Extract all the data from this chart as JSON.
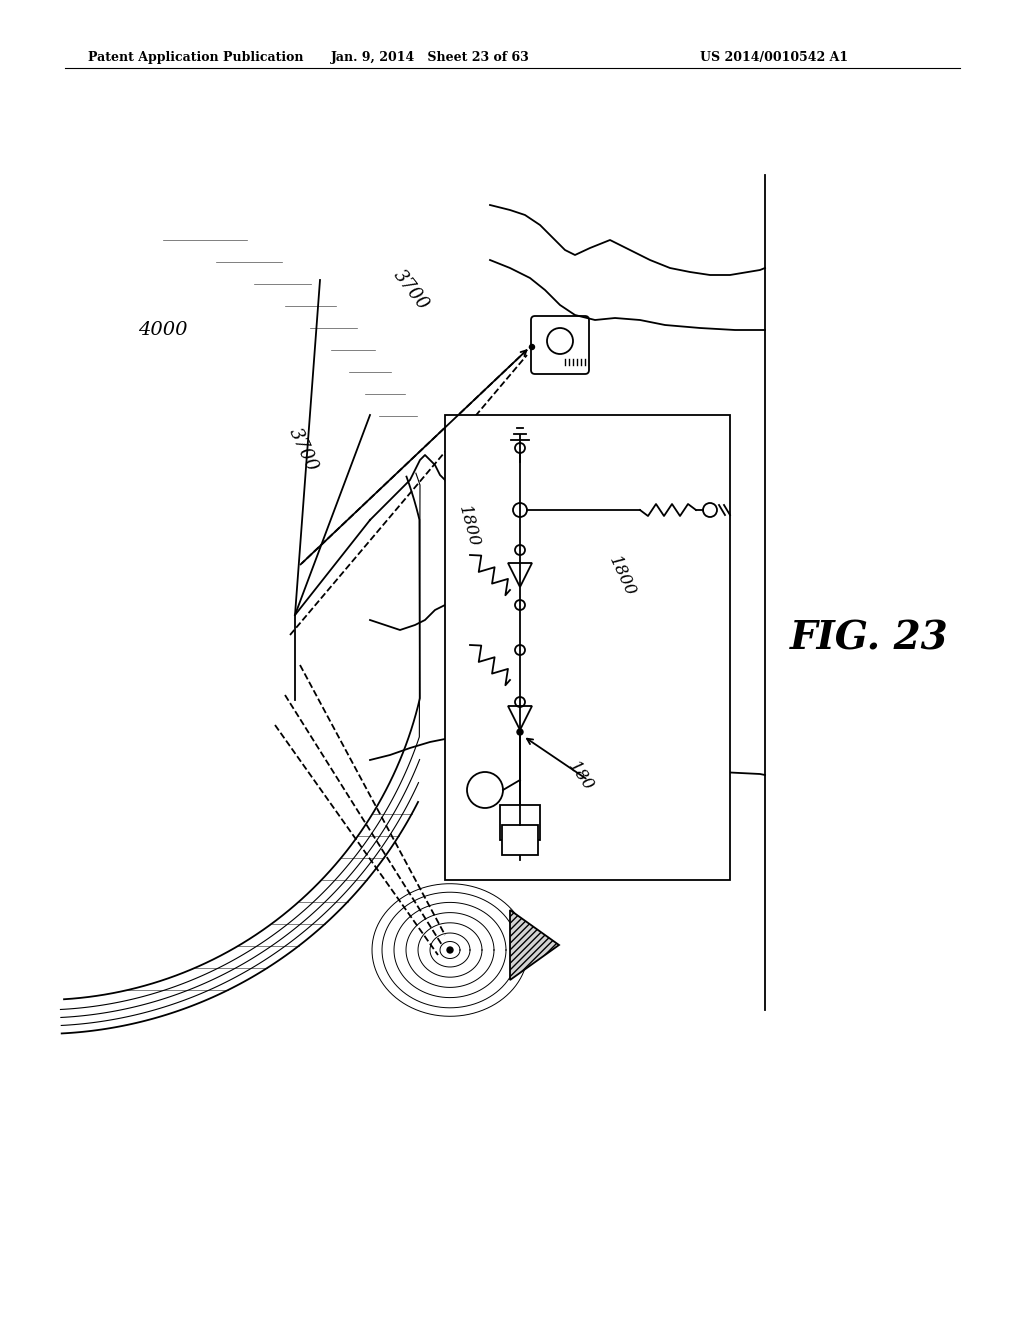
{
  "title": "FIG. 23",
  "header_left": "Patent Application Publication",
  "header_mid": "Jan. 9, 2014   Sheet 23 of 63",
  "header_right": "US 2014/0010542 A1",
  "bg_color": "#ffffff",
  "label_4000": "4000",
  "label_3700a": "3700",
  "label_3700b": "3700",
  "label_1800a": "1800",
  "label_1800b": "1800",
  "label_180": "180"
}
